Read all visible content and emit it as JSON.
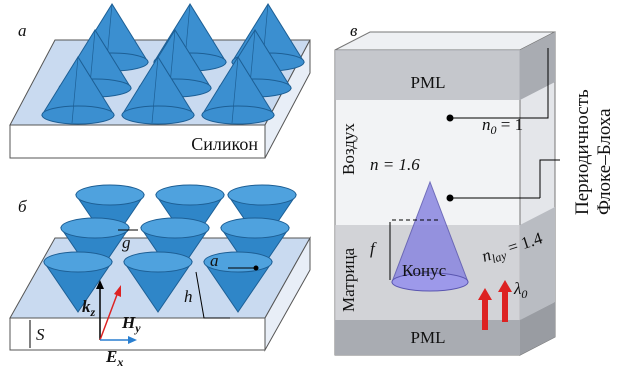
{
  "panels": {
    "a": {
      "label": "а",
      "substrate": "Силикон"
    },
    "b": {
      "label": "б",
      "gap": "g",
      "radius": "a",
      "height": "h",
      "thickness": "S",
      "k": {
        "main": "k",
        "sub": "z"
      },
      "H": {
        "main": "H",
        "sub": "y"
      },
      "E": {
        "main": "E",
        "sub": "x"
      }
    },
    "c": {
      "label": "в",
      "pml_top": "PML",
      "pml_bottom": "PML",
      "air": "Воздух",
      "n0": {
        "main": "n",
        "sub": "0",
        "rest": " = 1"
      },
      "cone_index": "n = 1.6",
      "f": "f",
      "matrix": "Матрица",
      "cone": "Конус",
      "nlay": {
        "main": "n",
        "sub": "lay",
        "rest": " = 1.4"
      },
      "wavelength": {
        "main": "λ",
        "sub": "0"
      },
      "periodicity": [
        "Периодичность",
        "Флоке–Блоха"
      ]
    }
  }
}
